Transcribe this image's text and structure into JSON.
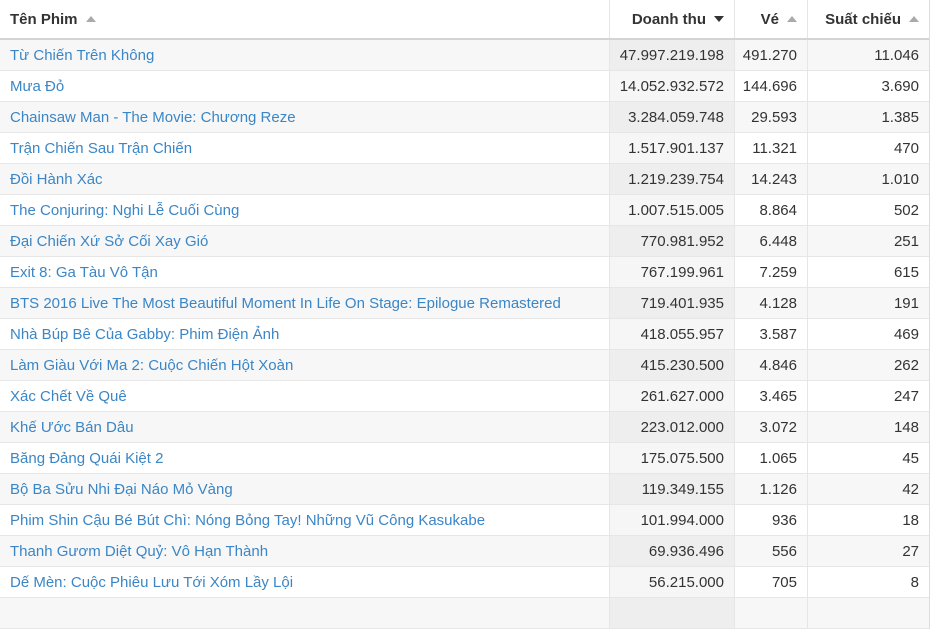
{
  "header": {
    "columns": [
      "Tên Phim",
      "Doanh thu",
      "Vé",
      "Suất chiếu"
    ]
  },
  "table": {
    "rows": [
      [
        "Từ Chiến Trên Không",
        "47.997.219.198",
        "491.270",
        "11.046"
      ],
      [
        "Mưa Đỏ",
        "14.052.932.572",
        "144.696",
        "3.690"
      ],
      [
        "Chainsaw Man - The Movie: Chương Reze",
        "3.284.059.748",
        "29.593",
        "1.385"
      ],
      [
        "Trận Chiến Sau Trận Chiến",
        "1.517.901.137",
        "11.321",
        "470"
      ],
      [
        "Đồi Hành Xác",
        "1.219.239.754",
        "14.243",
        "1.010"
      ],
      [
        "The Conjuring: Nghi Lễ Cuối Cùng",
        "1.007.515.005",
        "8.864",
        "502"
      ],
      [
        "Đại Chiến Xứ Sở Cối Xay Gió",
        "770.981.952",
        "6.448",
        "251"
      ],
      [
        "Exit 8: Ga Tàu Vô Tận",
        "767.199.961",
        "7.259",
        "615"
      ],
      [
        "BTS 2016 Live The Most Beautiful Moment In Life On Stage: Epilogue Remastered",
        "719.401.935",
        "4.128",
        "191"
      ],
      [
        "Nhà Búp Bê Của Gabby: Phim Điện Ảnh",
        "418.055.957",
        "3.587",
        "469"
      ],
      [
        "Làm Giàu Với Ma 2: Cuộc Chiến Hột Xoàn",
        "415.230.500",
        "4.846",
        "262"
      ],
      [
        "Xác Chết Về Quê",
        "261.627.000",
        "3.465",
        "247"
      ],
      [
        "Khế Ước Bán Dâu",
        "223.012.000",
        "3.072",
        "148"
      ],
      [
        "Băng Đảng Quái Kiệt 2",
        "175.075.500",
        "1.065",
        "45"
      ],
      [
        "Bộ Ba Sửu Nhi Đại Náo Mỏ Vàng",
        "119.349.155",
        "1.126",
        "42"
      ],
      [
        "Phim Shin Cậu Bé Bút Chì: Nóng Bỏng Tay! Những Vũ Công Kasukabe",
        "101.994.000",
        "936",
        "18"
      ],
      [
        "Thanh Gươm Diệt Quỷ: Vô Hạn Thành",
        "69.936.496",
        "556",
        "27"
      ],
      [
        "Dế Mèn: Cuộc Phiêu Lưu Tới Xóm Lầy Lội",
        "56.215.000",
        "705",
        "8"
      ]
    ]
  }
}
